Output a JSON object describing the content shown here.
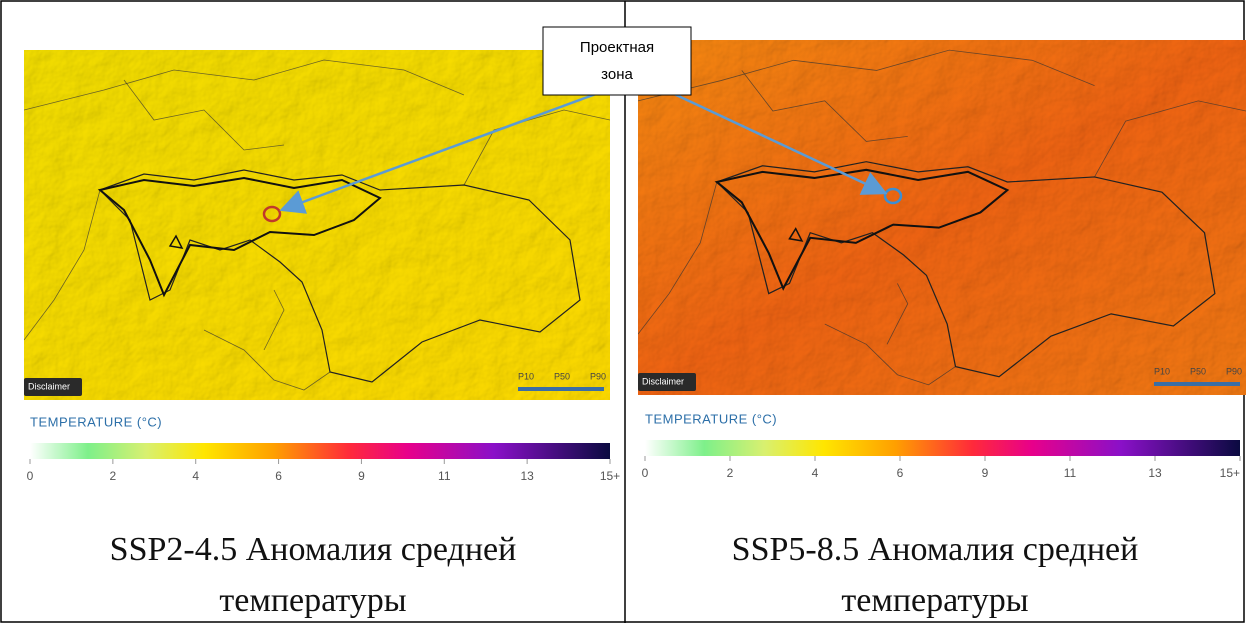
{
  "callout": {
    "lines": [
      "Проектная",
      "зона"
    ]
  },
  "panels": [
    {
      "disclaimer": "Disclaimer",
      "percentiles": [
        "P10",
        "P50",
        "P90"
      ],
      "legend_title": "TEMPERATURE (°C)",
      "scale_labels": [
        "0",
        "2",
        "4",
        "6",
        "9",
        "11",
        "13",
        "15+"
      ],
      "caption": [
        "SSP2-4.5 Аномалия средней",
        "температуры"
      ]
    },
    {
      "disclaimer": "Disclaimer",
      "percentiles": [
        "P10",
        "P50",
        "P90"
      ],
      "legend_title": "TEMPERATURE (°C)",
      "scale_labels": [
        "0",
        "2",
        "4",
        "6",
        "9",
        "11",
        "13",
        "15+"
      ],
      "caption": [
        "SSP5-8.5 Аномалия средней",
        "температуры"
      ]
    }
  ]
}
